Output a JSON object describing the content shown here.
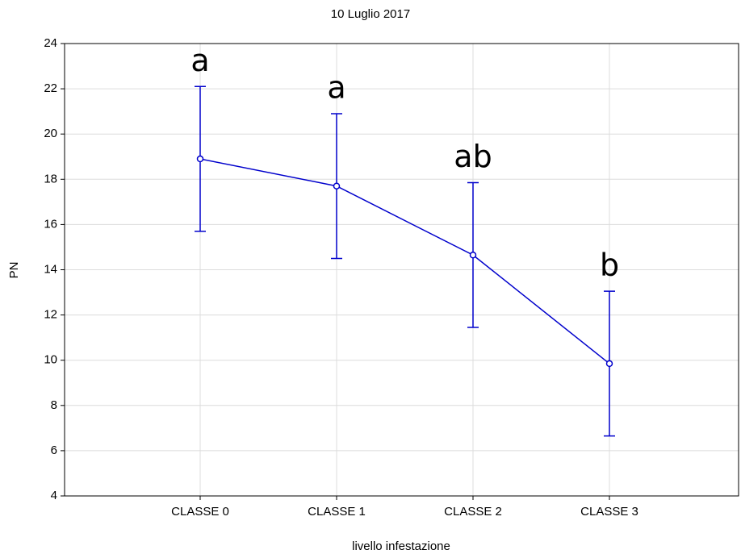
{
  "chart_data": {
    "type": "line",
    "title": "10 Luglio 2017",
    "x_label": "livello infestazione",
    "y_label": "PN",
    "categories": [
      "CLASSE 0",
      "CLASSE 1",
      "CLASSE 2",
      "CLASSE 3"
    ],
    "series": [
      {
        "color": "#0000cc",
        "values": [
          18.9,
          17.7,
          14.65,
          9.85
        ],
        "errors": [
          3.2,
          3.2,
          3.2,
          3.2
        ]
      }
    ],
    "annotations": [
      "a",
      "a",
      "ab",
      "b"
    ],
    "ylim": [
      4,
      24
    ],
    "yticks": [
      4,
      6,
      8,
      10,
      12,
      14,
      16,
      18,
      20,
      22,
      24
    ],
    "grid": true
  }
}
